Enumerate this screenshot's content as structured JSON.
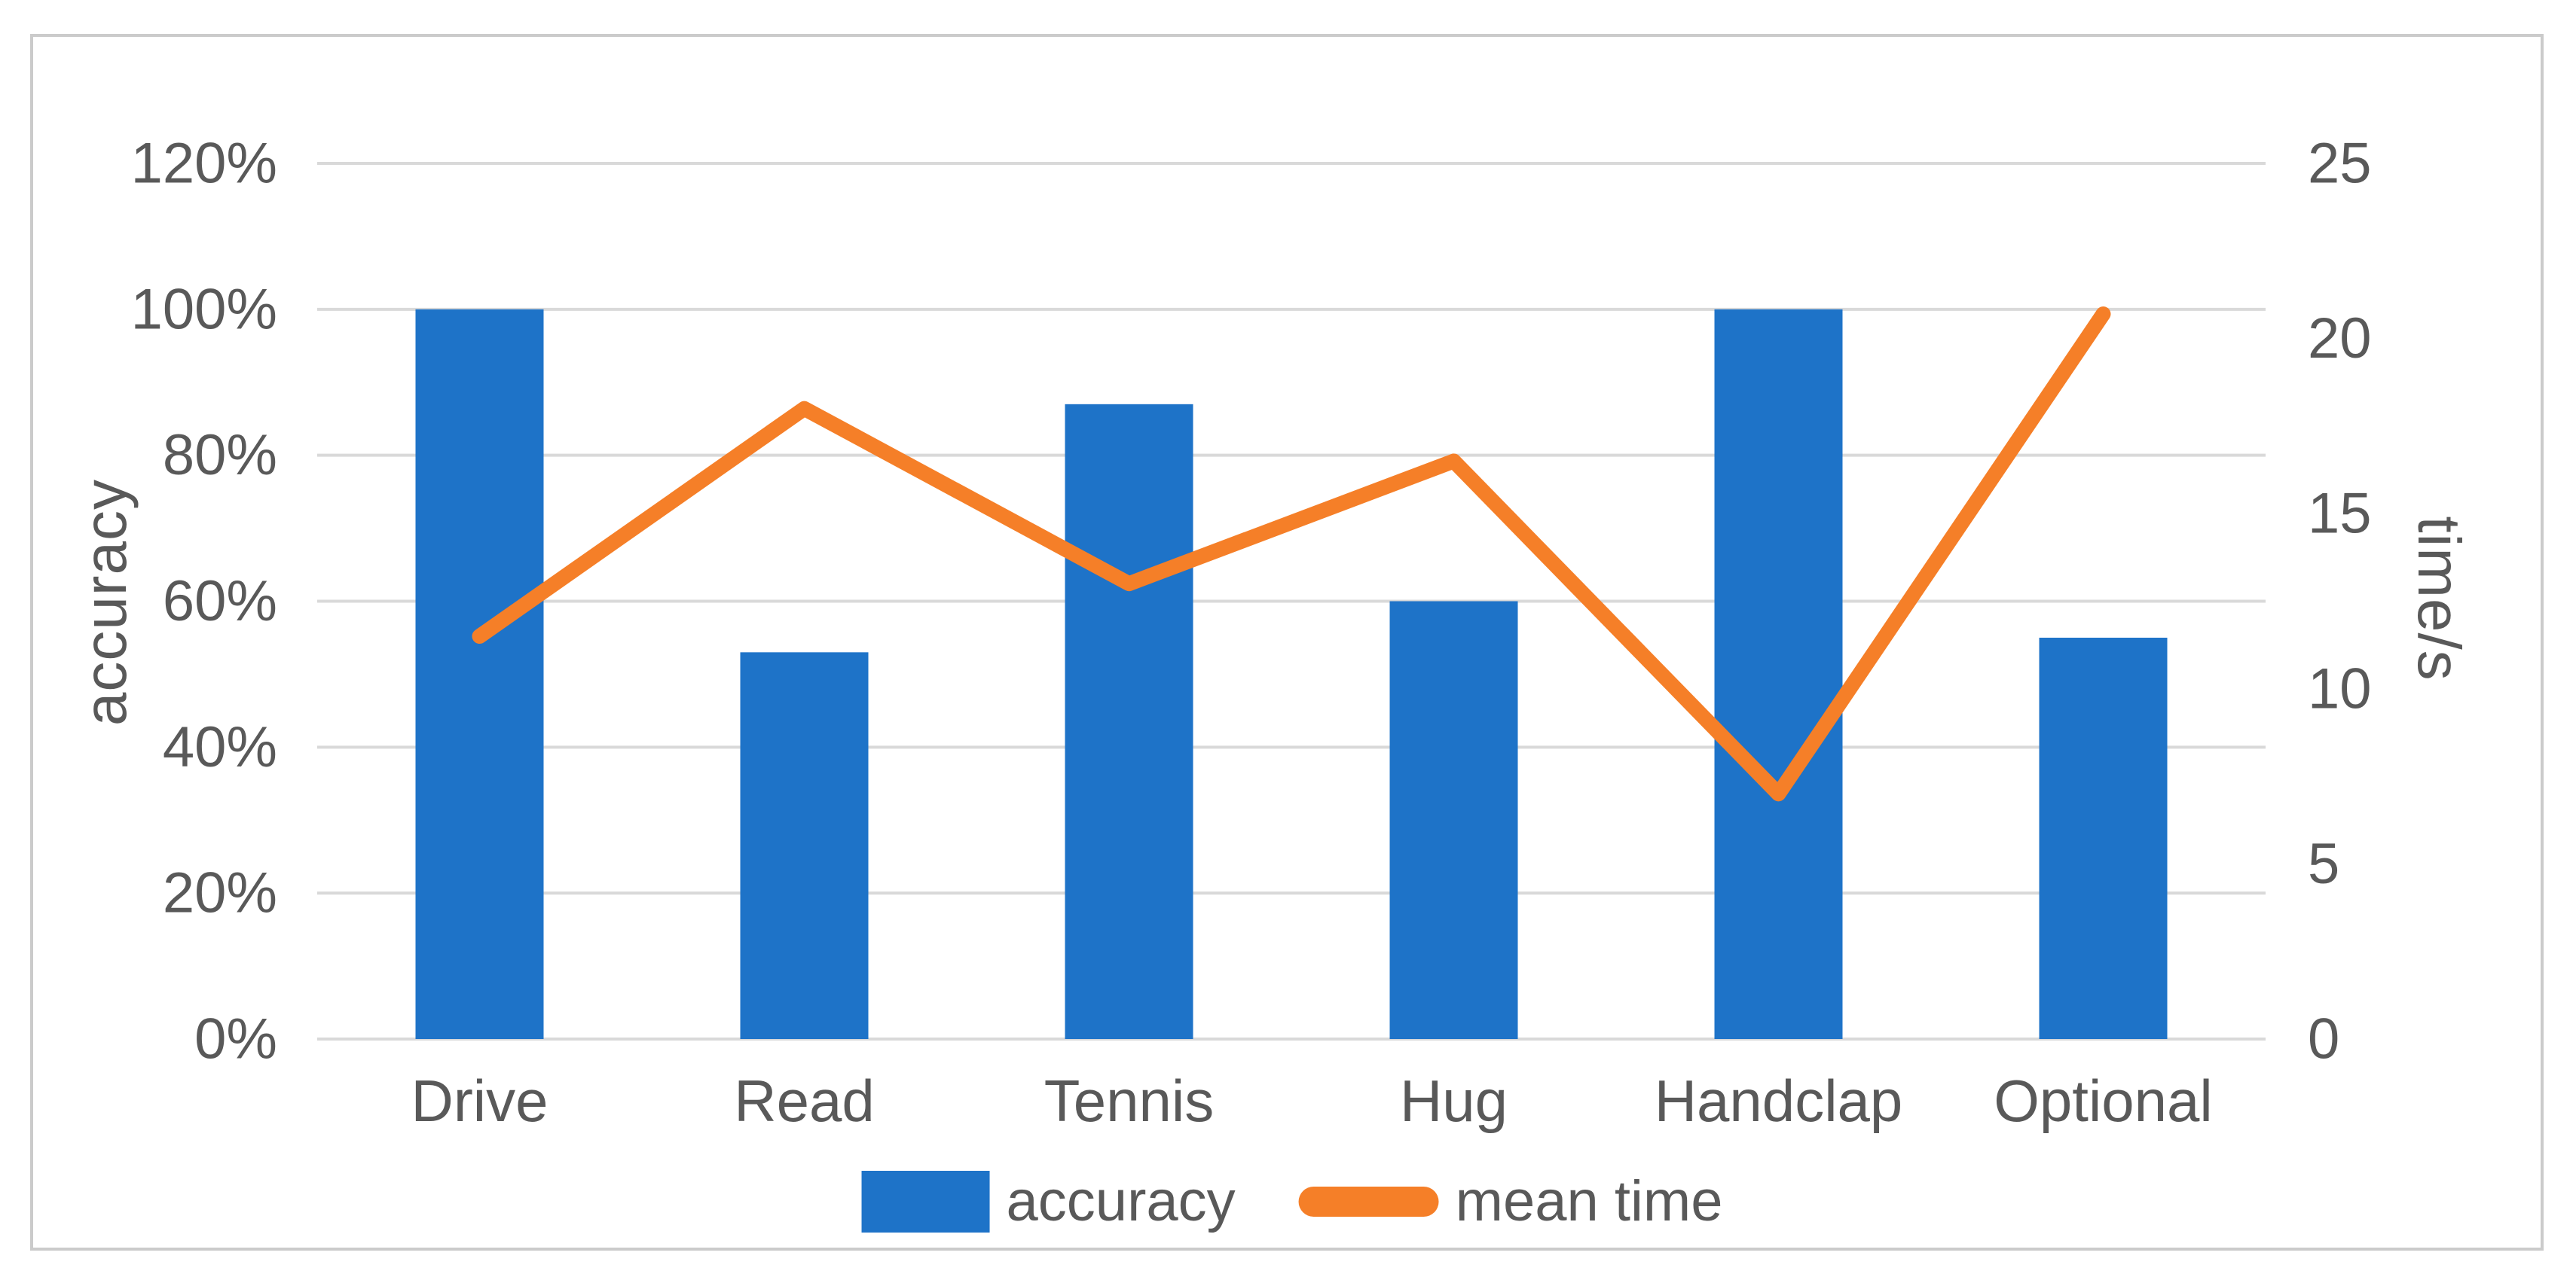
{
  "window": {
    "background": "#ffffff",
    "border_color": "#cbcbcb"
  },
  "chart_data": {
    "type": "combo bar+line, dual y-axes",
    "categories": [
      "Drive",
      "Read",
      "Tennis",
      "Hug",
      "Handclap",
      "Optional"
    ],
    "series": [
      {
        "name": "accuracy",
        "chart": "bar",
        "axis": "left",
        "color": "#1e73c8",
        "values": [
          1.0,
          0.53,
          0.87,
          0.6,
          1.0,
          0.55
        ],
        "values_display": [
          "100%",
          "53%",
          "87%",
          "60%",
          "100%",
          "55%"
        ]
      },
      {
        "name": "mean time",
        "chart": "line",
        "axis": "right",
        "color": "#f57f28",
        "values": [
          11.5,
          18,
          13,
          16.5,
          7,
          20.7
        ]
      }
    ],
    "left_axis": {
      "title": "accuracy",
      "min": 0,
      "max": 1.2,
      "tick_labels": [
        "0%",
        "20%",
        "40%",
        "60%",
        "80%",
        "100%",
        "120%"
      ]
    },
    "right_axis": {
      "title": "time/s",
      "min": 0,
      "max": 25,
      "tick_labels": [
        "0",
        "5",
        "10",
        "15",
        "20",
        "25"
      ]
    },
    "legend": {
      "position": "bottom",
      "items": [
        "accuracy",
        "mean time"
      ]
    },
    "grid": {
      "horizontal": true,
      "color": "#d9d9d9"
    },
    "text_color": "#595959"
  }
}
